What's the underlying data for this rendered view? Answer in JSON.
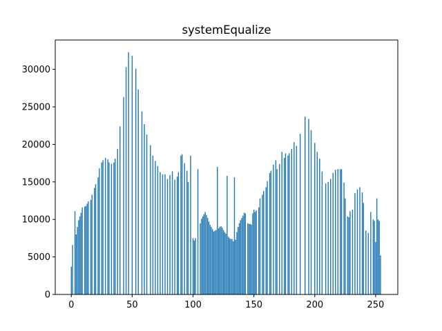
{
  "chart_data": {
    "type": "bar",
    "title": "systemEqualize",
    "color": "#1f77b4",
    "x": [
      0,
      1,
      2,
      3,
      4,
      5,
      6,
      7,
      8,
      9,
      10,
      11,
      12,
      13,
      14,
      15,
      16,
      17,
      18,
      19,
      20,
      21,
      22,
      23,
      24,
      25,
      26,
      27,
      28,
      29,
      30,
      31,
      32,
      33,
      34,
      35,
      36,
      37,
      38,
      39,
      40,
      41,
      42,
      43,
      44,
      45,
      46,
      47,
      48,
      49,
      50,
      51,
      52,
      53,
      54,
      55,
      56,
      57,
      58,
      59,
      60,
      61,
      62,
      63,
      64,
      65,
      66,
      67,
      68,
      69,
      70,
      71,
      72,
      73,
      74,
      75,
      76,
      77,
      78,
      79,
      80,
      81,
      82,
      83,
      84,
      85,
      86,
      87,
      88,
      89,
      90,
      91,
      92,
      93,
      94,
      95,
      96,
      97,
      98,
      99,
      100,
      101,
      102,
      103,
      104,
      105,
      106,
      107,
      108,
      109,
      110,
      111,
      112,
      113,
      114,
      115,
      116,
      117,
      118,
      119,
      120,
      121,
      122,
      123,
      124,
      125,
      126,
      127,
      128,
      129,
      130,
      131,
      132,
      133,
      134,
      135,
      136,
      137,
      138,
      139,
      140,
      141,
      142,
      143,
      144,
      145,
      146,
      147,
      148,
      149,
      150,
      151,
      152,
      153,
      154,
      155,
      156,
      157,
      158,
      159,
      160,
      161,
      162,
      163,
      164,
      165,
      166,
      167,
      168,
      169,
      170,
      171,
      172,
      173,
      174,
      175,
      176,
      177,
      178,
      179,
      180,
      181,
      182,
      183,
      184,
      185,
      186,
      187,
      188,
      189,
      190,
      191,
      192,
      193,
      194,
      195,
      196,
      197,
      198,
      199,
      200,
      201,
      202,
      203,
      204,
      205,
      206,
      207,
      208,
      209,
      210,
      211,
      212,
      213,
      214,
      215,
      216,
      217,
      218,
      219,
      220,
      221,
      222,
      223,
      224,
      225,
      226,
      227,
      228,
      229,
      230,
      231,
      232,
      233,
      234,
      235,
      236,
      237,
      238,
      239,
      240,
      241,
      242,
      243,
      244,
      245,
      246,
      247,
      248,
      249,
      250,
      251,
      252,
      253,
      254,
      255
    ],
    "values": [
      3700,
      6600,
      0,
      11100,
      8000,
      9000,
      9900,
      10400,
      10900,
      11600,
      0,
      11700,
      11800,
      12100,
      12400,
      0,
      12600,
      13300,
      0,
      14200,
      14700,
      0,
      15600,
      16800,
      0,
      17600,
      17900,
      0,
      18200,
      0,
      18000,
      17600,
      0,
      17400,
      0,
      17600,
      18100,
      0,
      19400,
      0,
      22400,
      0,
      0,
      26300,
      0,
      30300,
      0,
      32300,
      0,
      0,
      31800,
      0,
      0,
      30100,
      0,
      27300,
      0,
      0,
      24400,
      0,
      22700,
      0,
      21300,
      0,
      0,
      19900,
      0,
      18500,
      0,
      17800,
      0,
      17100,
      0,
      16300,
      0,
      16000,
      0,
      16000,
      0,
      15400,
      0,
      15900,
      0,
      16400,
      0,
      15300,
      0,
      15700,
      16300,
      0,
      18500,
      18700,
      0,
      17500,
      0,
      16500,
      15000,
      0,
      18500,
      0,
      7500,
      7200,
      7500,
      0,
      16700,
      0,
      9500,
      10100,
      10400,
      10700,
      11000,
      10600,
      10200,
      9700,
      9300,
      9000,
      8700,
      8400,
      8500,
      8600,
      17000,
      8800,
      9000,
      9100,
      8900,
      8600,
      8300,
      8100,
      15800,
      7700,
      7500,
      7400,
      7400,
      7100,
      15600,
      7300,
      8300,
      9000,
      9500,
      9900,
      10200,
      10500,
      10900,
      10800,
      0,
      9500,
      9400,
      9400,
      9300,
      10800,
      11300,
      11000,
      11200,
      0,
      11600,
      12800,
      0,
      13300,
      13800,
      0,
      14300,
      15100,
      0,
      16200,
      16500,
      0,
      17300,
      0,
      17900,
      16700,
      0,
      17400,
      0,
      19000,
      0,
      18200,
      18800,
      0,
      18500,
      18800,
      0,
      19400,
      0,
      20300,
      0,
      19800,
      0,
      0,
      21400,
      0,
      0,
      0,
      23700,
      0,
      0,
      23400,
      0,
      21900,
      0,
      0,
      20200,
      0,
      19000,
      0,
      18100,
      0,
      16400,
      0,
      0,
      14800,
      0,
      15000,
      0,
      15400,
      0,
      16200,
      0,
      16600,
      0,
      16700,
      0,
      16700,
      16700,
      0,
      14900,
      12800,
      0,
      10400,
      10300,
      11100,
      0,
      11300,
      0,
      13500,
      0,
      14000,
      0,
      14300,
      0,
      13600,
      12200,
      0,
      8500,
      0,
      8200,
      0,
      11000,
      0,
      10000,
      9800,
      7000,
      12800,
      10000,
      9800,
      5200,
      0
    ],
    "xlim": [
      -13.2,
      268.2
    ],
    "xticks": [
      0,
      50,
      100,
      150,
      200,
      250
    ],
    "ylim": [
      0,
      33915
    ],
    "yticks": [
      0,
      5000,
      10000,
      15000,
      20000,
      25000,
      30000
    ]
  }
}
